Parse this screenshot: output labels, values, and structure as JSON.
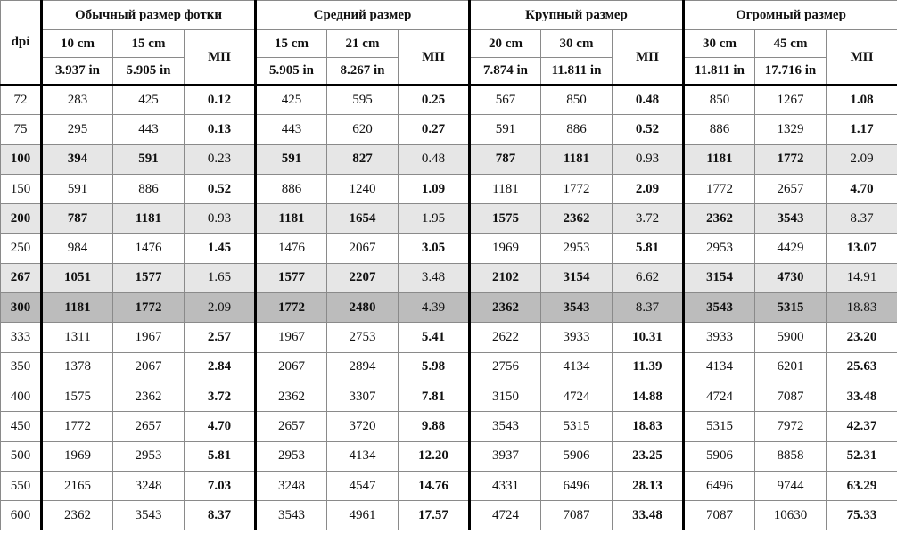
{
  "header": {
    "dpi": "dpi",
    "groups": [
      {
        "title": "Обычный размер фотки",
        "sizes": [
          {
            "cm": "10 cm",
            "in": "3.937 in"
          },
          {
            "cm": "15 cm",
            "in": "5.905 in"
          }
        ],
        "mp": "МП"
      },
      {
        "title": "Средний размер",
        "sizes": [
          {
            "cm": "15 cm",
            "in": "5.905 in"
          },
          {
            "cm": "21 cm",
            "in": "8.267 in"
          }
        ],
        "mp": "МП"
      },
      {
        "title": "Крупный размер",
        "sizes": [
          {
            "cm": "20 cm",
            "in": "7.874 in"
          },
          {
            "cm": "30 cm",
            "in": "11.811 in"
          }
        ],
        "mp": "МП"
      },
      {
        "title": "Огромный размер",
        "sizes": [
          {
            "cm": "30 cm",
            "in": "11.811 in"
          },
          {
            "cm": "45 cm",
            "in": "17.716 in"
          }
        ],
        "mp": "МП"
      }
    ]
  },
  "table": {
    "rows": [
      [
        "72",
        "283",
        "425",
        "0.12",
        "425",
        "595",
        "0.25",
        "567",
        "850",
        "0.48",
        "850",
        "1267",
        "1.08"
      ],
      [
        "75",
        "295",
        "443",
        "0.13",
        "443",
        "620",
        "0.27",
        "591",
        "886",
        "0.52",
        "886",
        "1329",
        "1.17"
      ],
      [
        "100",
        "394",
        "591",
        "0.23",
        "591",
        "827",
        "0.48",
        "787",
        "1181",
        "0.93",
        "1181",
        "1772",
        "2.09"
      ],
      [
        "150",
        "591",
        "886",
        "0.52",
        "886",
        "1240",
        "1.09",
        "1181",
        "1772",
        "2.09",
        "1772",
        "2657",
        "4.70"
      ],
      [
        "200",
        "787",
        "1181",
        "0.93",
        "1181",
        "1654",
        "1.95",
        "1575",
        "2362",
        "3.72",
        "2362",
        "3543",
        "8.37"
      ],
      [
        "250",
        "984",
        "1476",
        "1.45",
        "1476",
        "2067",
        "3.05",
        "1969",
        "2953",
        "5.81",
        "2953",
        "4429",
        "13.07"
      ],
      [
        "267",
        "1051",
        "1577",
        "1.65",
        "1577",
        "2207",
        "3.48",
        "2102",
        "3154",
        "6.62",
        "3154",
        "4730",
        "14.91"
      ],
      [
        "300",
        "1181",
        "1772",
        "2.09",
        "1772",
        "2480",
        "4.39",
        "2362",
        "3543",
        "8.37",
        "3543",
        "5315",
        "18.83"
      ],
      [
        "333",
        "1311",
        "1967",
        "2.57",
        "1967",
        "2753",
        "5.41",
        "2622",
        "3933",
        "10.31",
        "3933",
        "5900",
        "23.20"
      ],
      [
        "350",
        "1378",
        "2067",
        "2.84",
        "2067",
        "2894",
        "5.98",
        "2756",
        "4134",
        "11.39",
        "4134",
        "6201",
        "25.63"
      ],
      [
        "400",
        "1575",
        "2362",
        "3.72",
        "2362",
        "3307",
        "7.81",
        "3150",
        "4724",
        "14.88",
        "4724",
        "7087",
        "33.48"
      ],
      [
        "450",
        "1772",
        "2657",
        "4.70",
        "2657",
        "3720",
        "9.88",
        "3543",
        "5315",
        "18.83",
        "5315",
        "7972",
        "42.37"
      ],
      [
        "500",
        "1969",
        "2953",
        "5.81",
        "2953",
        "4134",
        "12.20",
        "3937",
        "5906",
        "23.25",
        "5906",
        "8858",
        "52.31"
      ],
      [
        "550",
        "2165",
        "3248",
        "7.03",
        "3248",
        "4547",
        "14.76",
        "4331",
        "6496",
        "28.13",
        "6496",
        "9744",
        "63.29"
      ],
      [
        "600",
        "2362",
        "3543",
        "8.37",
        "3543",
        "4961",
        "17.57",
        "4724",
        "7087",
        "33.48",
        "7087",
        "10630",
        "75.33"
      ]
    ]
  }
}
